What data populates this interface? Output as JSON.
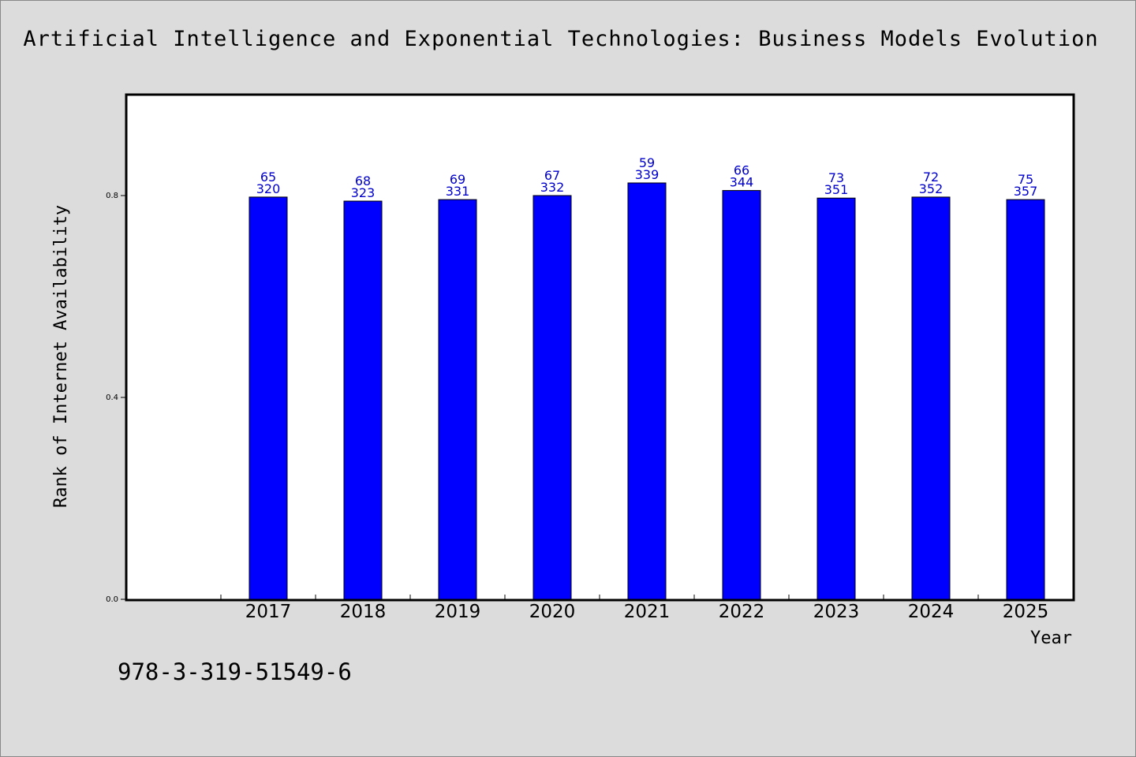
{
  "chart_data": {
    "type": "bar",
    "title": "Artificial Intelligence and Exponential Technologies: Business Models Evolution",
    "xlabel": "Year",
    "ylabel": "Rank of Internet Availability",
    "ylim": [
      0,
      1.0
    ],
    "yticks": [
      "0.0",
      "0.4",
      "0.8"
    ],
    "grid": false,
    "legend": "none",
    "bar_color": "#0000ff",
    "label_color": "#0000cc",
    "categories": [
      "2017",
      "2018",
      "2019",
      "2020",
      "2021",
      "2022",
      "2023",
      "2024",
      "2025"
    ],
    "values": [
      0.797,
      0.789,
      0.792,
      0.8,
      0.825,
      0.81,
      0.795,
      0.797,
      0.792
    ],
    "label_top": [
      "65",
      "68",
      "69",
      "67",
      "59",
      "66",
      "73",
      "72",
      "75"
    ],
    "label_bottom": [
      "320",
      "323",
      "331",
      "332",
      "339",
      "344",
      "351",
      "352",
      "357"
    ]
  },
  "footer": {
    "isbn": "978-3-319-51549-6"
  }
}
